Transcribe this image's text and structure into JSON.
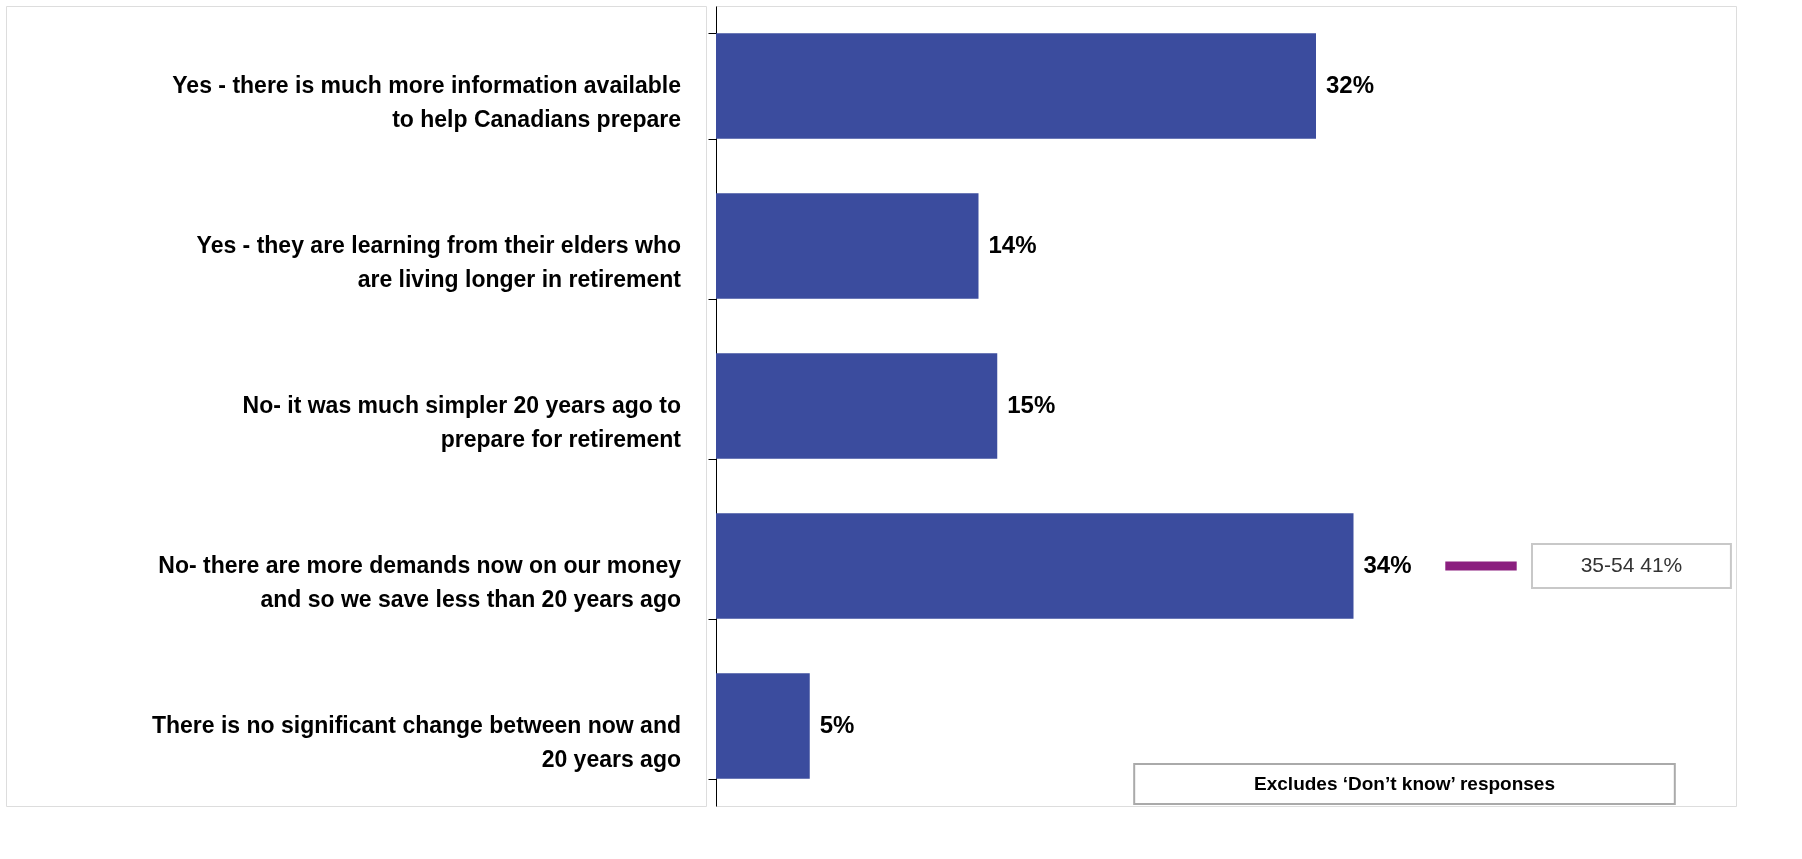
{
  "chart_data": {
    "type": "bar",
    "orientation": "horizontal",
    "categories": [
      "Yes - there is much more information available to help Canadians prepare",
      "Yes - they are learning from their elders who are living longer in retirement",
      "No- it was much simpler 20 years ago to prepare for retirement",
      "No- there are more demands now on our money and so we save less than 20 years ago",
      "There is no significant change between now and 20 years ago"
    ],
    "values": [
      32,
      14,
      15,
      34,
      5
    ],
    "value_labels": [
      "32%",
      "14%",
      "15%",
      "34%",
      "5%"
    ],
    "color": "#3b4c9e",
    "annotations": [
      "35-54    41%",
      "Excludes ‘Don’t know’ responses"
    ]
  }
}
